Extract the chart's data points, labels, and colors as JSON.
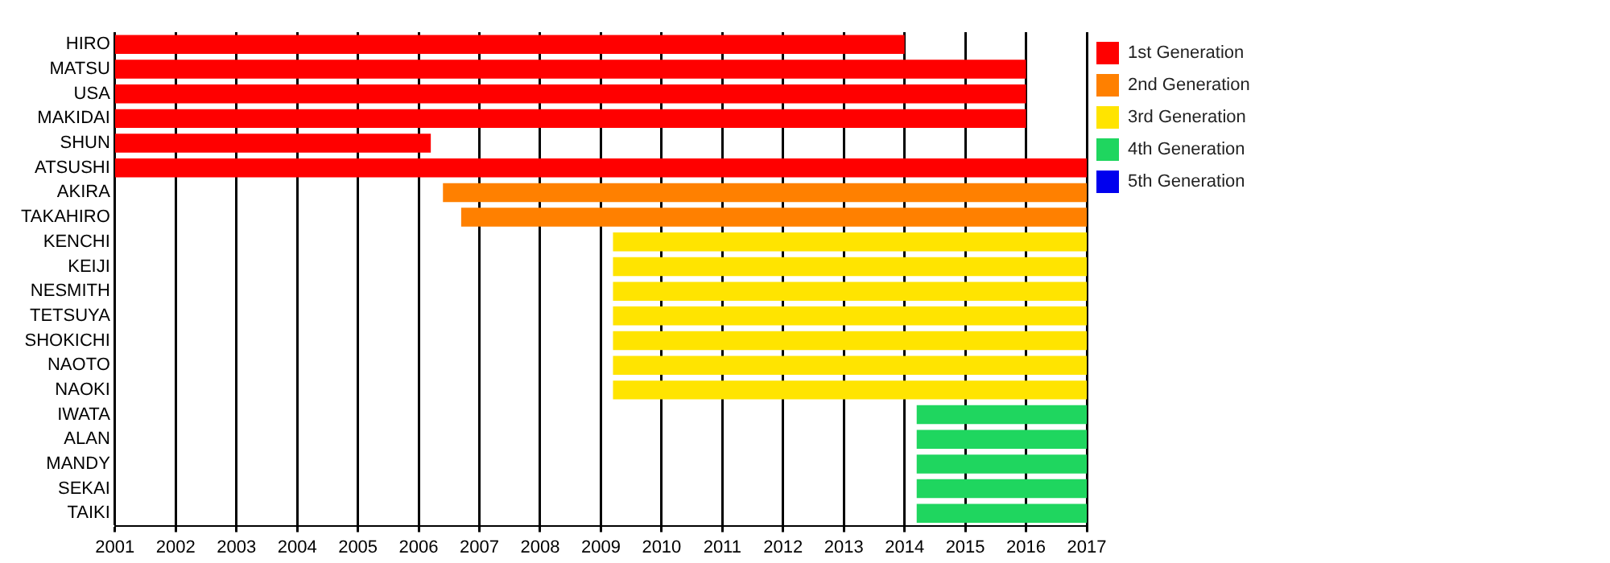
{
  "chart_data": {
    "type": "bar",
    "orientation": "horizontal",
    "categories": [
      "HIRO",
      "MATSU",
      "USA",
      "MAKIDAI",
      "SHUN",
      "ATSUSHI",
      "AKIRA",
      "TAKAHIRO",
      "KENCHI",
      "KEIJI",
      "NESMITH",
      "TETSUYA",
      "SHOKICHI",
      "NAOTO",
      "NAOKI",
      "IWATA",
      "ALAN",
      "MANDY",
      "SEKAI",
      "TAIKI"
    ],
    "series": [
      {
        "name": "1st Generation",
        "color": "#ff0000",
        "values": [
          13,
          15,
          15,
          15,
          5.2,
          16,
          null,
          null,
          null,
          null,
          null,
          null,
          null,
          null,
          null,
          null,
          null,
          null,
          null,
          null
        ],
        "base": [
          2001,
          2001,
          2001,
          2001,
          2001,
          2001,
          null,
          null,
          null,
          null,
          null,
          null,
          null,
          null,
          null,
          null,
          null,
          null,
          null,
          null
        ]
      },
      {
        "name": "2nd Generation",
        "color": "#ff8000",
        "values": [
          null,
          null,
          null,
          null,
          null,
          null,
          10.6,
          10.3,
          null,
          null,
          null,
          null,
          null,
          null,
          null,
          null,
          null,
          null,
          null,
          null
        ],
        "base": [
          null,
          null,
          null,
          null,
          null,
          null,
          2006.4,
          2006.7,
          null,
          null,
          null,
          null,
          null,
          null,
          null,
          null,
          null,
          null,
          null,
          null
        ]
      },
      {
        "name": "3rd Generation",
        "color": "#ffe400",
        "values": [
          null,
          null,
          null,
          null,
          null,
          null,
          null,
          null,
          7.8,
          7.8,
          7.8,
          7.8,
          7.8,
          7.8,
          7.8,
          null,
          null,
          null,
          null,
          null
        ],
        "base": [
          null,
          null,
          null,
          null,
          null,
          null,
          null,
          null,
          2009.2,
          2009.2,
          2009.2,
          2009.2,
          2009.2,
          2009.2,
          2009.2,
          null,
          null,
          null,
          null,
          null
        ]
      },
      {
        "name": "4th Generation",
        "color": "#1fd65f",
        "values": [
          null,
          null,
          null,
          null,
          null,
          null,
          null,
          null,
          null,
          null,
          null,
          null,
          null,
          null,
          null,
          2.8,
          2.8,
          2.8,
          2.8,
          2.8
        ],
        "base": [
          null,
          null,
          null,
          null,
          null,
          null,
          null,
          null,
          null,
          null,
          null,
          null,
          null,
          null,
          null,
          2014.2,
          2014.2,
          2014.2,
          2014.2,
          2014.2
        ]
      },
      {
        "name": "5th Generation",
        "color": "#0000ee",
        "values": [
          null,
          null,
          null,
          null,
          null,
          null,
          null,
          null,
          null,
          null,
          null,
          null,
          null,
          null,
          null,
          null,
          null,
          null,
          null,
          null
        ]
      }
    ],
    "xlim": [
      2001,
      2017
    ],
    "xticks": [
      2001,
      2002,
      2003,
      2004,
      2005,
      2006,
      2007,
      2008,
      2009,
      2010,
      2011,
      2012,
      2013,
      2014,
      2015,
      2016,
      2017
    ],
    "grid": "x",
    "legend": "right"
  }
}
